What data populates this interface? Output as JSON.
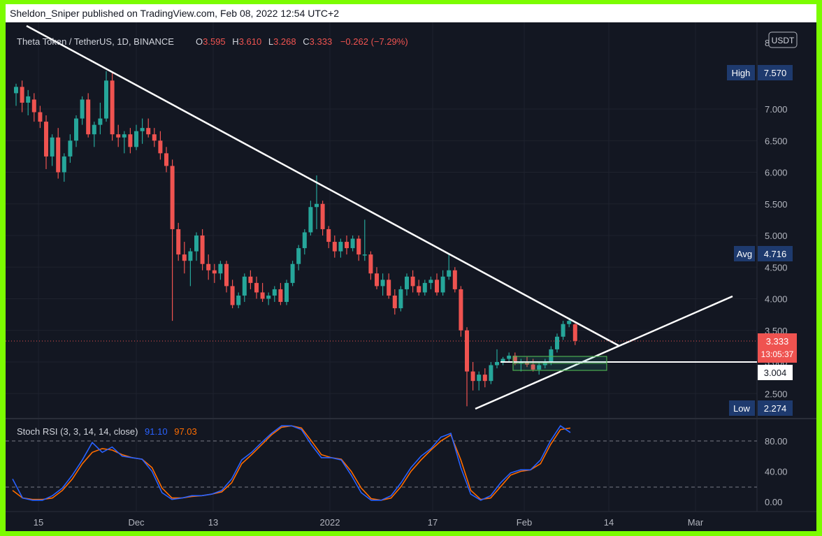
{
  "header": {
    "published": "Sheldon_Sniper published on TradingView.com, Feb 08, 2022 12:54 UTC+2"
  },
  "legend": {
    "symbol": "Theta Token / TetherUS, 1D, BINANCE",
    "o_label": "O",
    "o_value": "3.595",
    "h_label": "H",
    "h_value": "3.610",
    "l_label": "L",
    "l_value": "3.268",
    "c_label": "C",
    "c_value": "3.333",
    "change": "−0.262 (−7.29%)"
  },
  "currency_button": "USDT",
  "price_labels": {
    "high_label": "High",
    "high_value": "7.570",
    "avg_label": "Avg",
    "avg_value": "4.716",
    "low_label": "Low",
    "low_value": "2.274",
    "last_value": "3.333",
    "countdown": "13:05:37",
    "level_value": "3.004",
    "clipped_top": "8"
  },
  "oscillator": {
    "title": "Stoch RSI (3, 3, 14, 14, close)",
    "k_value": "91.10",
    "d_value": "97.03"
  },
  "colors": {
    "background": "#131722",
    "up": "#26a69a",
    "down": "#ef5350",
    "k_line": "#2962ff",
    "d_line": "#ff6d00",
    "frame": "#7cfc00",
    "label_bg": "#1e3a6e"
  },
  "chart_data": [
    {
      "type": "candlestick",
      "title": "Theta Token / TetherUS, 1D, BINANCE",
      "y_ticks": [
        "2.500",
        "3.000",
        "3.500",
        "4.000",
        "4.500",
        "5.000",
        "5.500",
        "6.000",
        "6.500",
        "7.000"
      ],
      "x_ticks": [
        "15",
        "Dec",
        "13",
        "2022",
        "17",
        "Feb",
        "14",
        "Mar"
      ],
      "ylim": [
        2.0,
        8.0
      ],
      "annotations": [
        "descending trendline from Nov highs",
        "ascending trendline from Jan 24 low",
        "horizontal level 3.004",
        "green box zone ~2.85-3.10"
      ],
      "candles": [
        [
          7.25,
          7.4,
          7.05,
          7.35
        ],
        [
          7.35,
          7.45,
          6.95,
          7.1
        ],
        [
          7.1,
          7.3,
          6.9,
          7.2
        ],
        [
          7.15,
          7.25,
          6.8,
          6.95
        ],
        [
          6.95,
          7.05,
          6.7,
          6.8
        ],
        [
          6.8,
          6.9,
          6.05,
          6.25
        ],
        [
          6.25,
          6.6,
          6.1,
          6.55
        ],
        [
          6.55,
          6.7,
          5.9,
          6.0
        ],
        [
          6.0,
          6.3,
          5.85,
          6.25
        ],
        [
          6.25,
          6.6,
          6.15,
          6.5
        ],
        [
          6.5,
          6.9,
          6.4,
          6.85
        ],
        [
          6.85,
          7.2,
          6.75,
          7.15
        ],
        [
          7.15,
          7.25,
          6.55,
          6.6
        ],
        [
          6.6,
          6.8,
          6.4,
          6.75
        ],
        [
          6.75,
          7.1,
          6.6,
          6.85
        ],
        [
          6.85,
          7.6,
          6.8,
          7.45
        ],
        [
          7.45,
          7.57,
          6.5,
          6.6
        ],
        [
          6.6,
          6.75,
          6.4,
          6.55
        ],
        [
          6.55,
          6.65,
          6.3,
          6.6
        ],
        [
          6.6,
          6.7,
          6.3,
          6.4
        ],
        [
          6.4,
          6.75,
          6.35,
          6.65
        ],
        [
          6.65,
          6.85,
          6.45,
          6.7
        ],
        [
          6.7,
          6.85,
          6.55,
          6.6
        ],
        [
          6.6,
          6.7,
          6.4,
          6.5
        ],
        [
          6.5,
          6.65,
          6.2,
          6.3
        ],
        [
          6.3,
          6.4,
          6.0,
          6.1
        ],
        [
          6.1,
          6.2,
          3.65,
          5.1
        ],
        [
          5.1,
          5.2,
          4.6,
          4.7
        ],
        [
          4.7,
          4.9,
          4.4,
          4.6
        ],
        [
          4.6,
          4.8,
          4.2,
          4.75
        ],
        [
          4.75,
          5.05,
          4.6,
          5.0
        ],
        [
          5.0,
          5.1,
          4.45,
          4.55
        ],
        [
          4.55,
          4.7,
          4.3,
          4.45
        ],
        [
          4.45,
          4.55,
          4.25,
          4.4
        ],
        [
          4.4,
          4.6,
          4.3,
          4.55
        ],
        [
          4.55,
          4.6,
          4.1,
          4.2
        ],
        [
          4.2,
          4.3,
          3.85,
          3.9
        ],
        [
          3.9,
          4.1,
          3.85,
          4.05
        ],
        [
          4.05,
          4.4,
          3.95,
          4.35
        ],
        [
          4.35,
          4.45,
          4.15,
          4.25
        ],
        [
          4.25,
          4.35,
          4.0,
          4.1
        ],
        [
          4.1,
          4.25,
          3.95,
          4.0
        ],
        [
          4.0,
          4.1,
          3.9,
          4.05
        ],
        [
          4.05,
          4.2,
          3.95,
          4.15
        ],
        [
          4.15,
          4.25,
          3.9,
          3.95
        ],
        [
          3.95,
          4.3,
          3.9,
          4.25
        ],
        [
          4.25,
          4.6,
          4.2,
          4.55
        ],
        [
          4.55,
          4.85,
          4.45,
          4.8
        ],
        [
          4.8,
          5.1,
          4.7,
          5.05
        ],
        [
          5.05,
          5.55,
          5.0,
          5.45
        ],
        [
          5.45,
          5.95,
          5.1,
          5.5
        ],
        [
          5.5,
          5.55,
          5.0,
          5.1
        ],
        [
          5.1,
          5.15,
          4.8,
          4.9
        ],
        [
          4.9,
          5.0,
          4.65,
          4.75
        ],
        [
          4.75,
          4.95,
          4.65,
          4.9
        ],
        [
          4.9,
          5.0,
          4.7,
          4.8
        ],
        [
          4.8,
          5.0,
          4.75,
          4.95
        ],
        [
          4.95,
          5.0,
          4.6,
          4.7
        ],
        [
          4.7,
          5.25,
          4.6,
          4.7
        ],
        [
          4.7,
          4.75,
          4.3,
          4.4
        ],
        [
          4.4,
          4.5,
          4.15,
          4.2
        ],
        [
          4.2,
          4.4,
          4.05,
          4.3
        ],
        [
          4.3,
          4.4,
          4.0,
          4.05
        ],
        [
          4.05,
          4.15,
          3.75,
          3.85
        ],
        [
          3.85,
          4.2,
          3.8,
          4.15
        ],
        [
          4.15,
          4.4,
          4.05,
          4.35
        ],
        [
          4.35,
          4.45,
          4.1,
          4.2
        ],
        [
          4.2,
          4.3,
          4.05,
          4.1
        ],
        [
          4.1,
          4.3,
          4.05,
          4.25
        ],
        [
          4.25,
          4.35,
          4.15,
          4.3
        ],
        [
          4.3,
          4.4,
          4.05,
          4.1
        ],
        [
          4.1,
          4.45,
          4.05,
          4.35
        ],
        [
          4.35,
          4.7,
          4.3,
          4.45
        ],
        [
          4.45,
          4.5,
          4.1,
          4.15
        ],
        [
          4.15,
          4.2,
          3.4,
          3.5
        ],
        [
          3.5,
          3.55,
          2.3,
          2.85
        ],
        [
          2.85,
          3.0,
          2.55,
          2.7
        ],
        [
          2.7,
          2.85,
          2.55,
          2.8
        ],
        [
          2.8,
          2.9,
          2.6,
          2.7
        ],
        [
          2.7,
          3.0,
          2.65,
          2.95
        ],
        [
          2.95,
          3.2,
          2.9,
          3.0
        ],
        [
          3.0,
          3.08,
          2.95,
          3.05
        ],
        [
          3.05,
          3.15,
          3.0,
          3.1
        ],
        [
          3.1,
          3.15,
          2.95,
          2.98
        ],
        [
          2.98,
          3.05,
          2.85,
          3.0
        ],
        [
          3.0,
          3.08,
          2.92,
          2.96
        ],
        [
          2.96,
          3.05,
          2.85,
          2.88
        ],
        [
          2.88,
          3.0,
          2.8,
          2.95
        ],
        [
          2.95,
          3.05,
          2.9,
          3.0
        ],
        [
          3.0,
          3.25,
          2.95,
          3.2
        ],
        [
          3.2,
          3.45,
          3.15,
          3.4
        ],
        [
          3.4,
          3.65,
          3.35,
          3.6
        ],
        [
          3.6,
          3.7,
          3.55,
          3.65
        ],
        [
          3.595,
          3.61,
          3.268,
          3.333
        ]
      ]
    },
    {
      "type": "line",
      "title": "Stoch RSI (3, 3, 14, 14, close)",
      "y_ticks": [
        "0.00",
        "40.00",
        "80.00"
      ],
      "ylim": [
        0,
        100
      ],
      "series": [
        {
          "name": "K",
          "values": [
            30,
            5,
            2,
            2,
            8,
            18,
            35,
            55,
            78,
            65,
            72,
            60,
            58,
            56,
            40,
            12,
            3,
            5,
            8,
            8,
            10,
            15,
            30,
            55,
            65,
            78,
            90,
            100,
            100,
            95,
            75,
            58,
            58,
            55,
            35,
            12,
            2,
            2,
            8,
            25,
            45,
            60,
            70,
            85,
            90,
            45,
            10,
            2,
            8,
            25,
            38,
            42,
            42,
            55,
            80,
            100,
            91.1
          ]
        },
        {
          "name": "D",
          "values": [
            15,
            5,
            3,
            3,
            5,
            15,
            30,
            50,
            65,
            70,
            68,
            62,
            58,
            56,
            45,
            18,
            5,
            5,
            7,
            8,
            10,
            13,
            25,
            50,
            62,
            75,
            88,
            98,
            100,
            97,
            80,
            62,
            58,
            56,
            40,
            18,
            4,
            2,
            5,
            20,
            40,
            55,
            68,
            80,
            88,
            55,
            15,
            3,
            5,
            20,
            35,
            40,
            42,
            50,
            75,
            95,
            97.03
          ]
        }
      ]
    }
  ]
}
